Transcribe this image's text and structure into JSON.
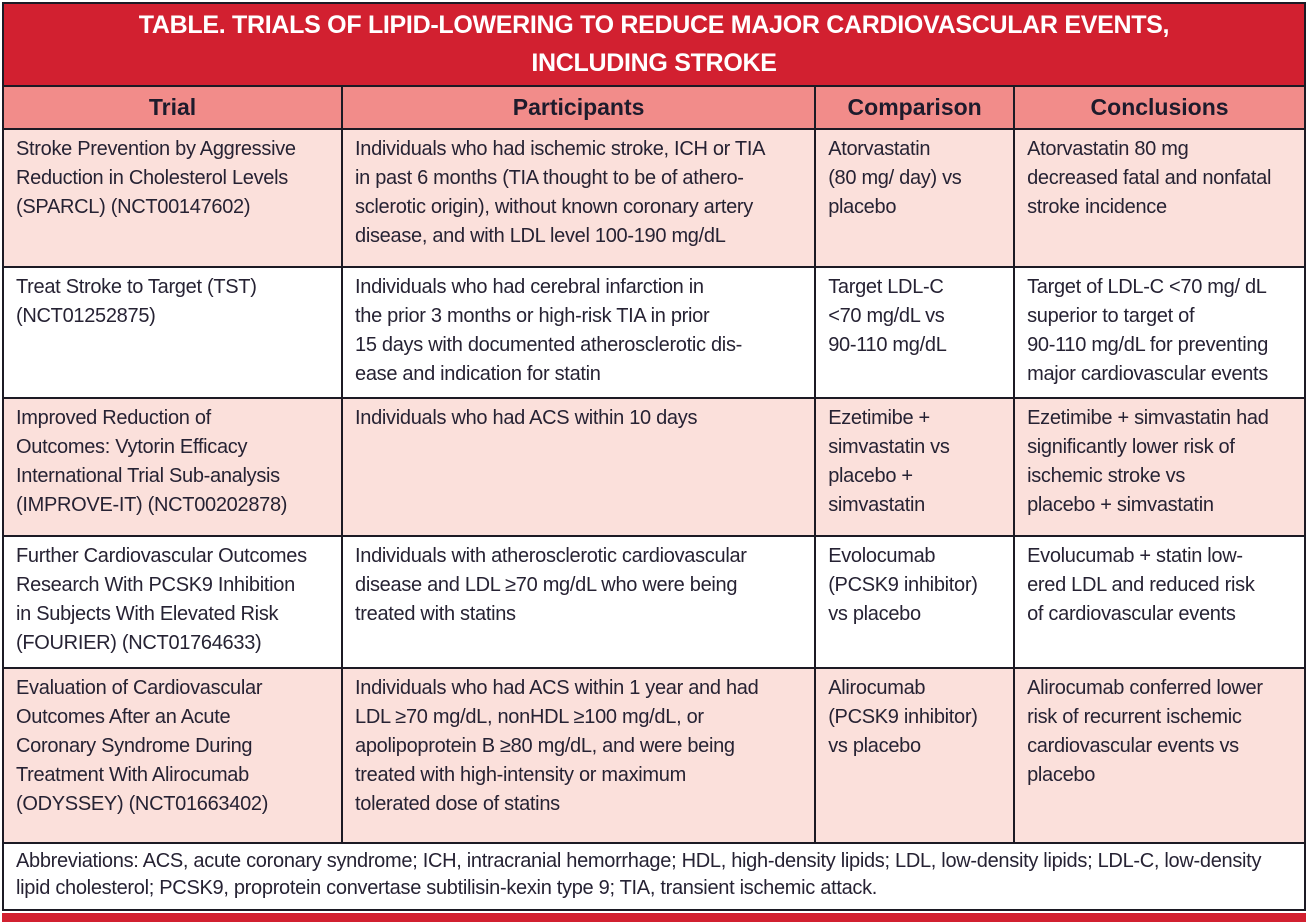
{
  "table": {
    "title": "TABLE. TRIALS OF LIPID-LOWERING TO REDUCE MAJOR CARDIOVASCULAR EVENTS,\nINCLUDING STROKE",
    "columns": {
      "trial": "Trial",
      "participants": "Participants",
      "comparison": "Comparison",
      "conclusions": "Conclusions"
    },
    "rows": [
      {
        "trial": "Stroke Prevention by Aggressive\nReduction in Cholesterol Levels\n(SPARCL) (NCT00147602)",
        "participants": "Individuals who had ischemic stroke, ICH or TIA\nin past 6 months (TIA thought to be of athero-\nsclerotic origin), without known coronary artery\ndisease, and with LDL level 100-190 mg/dL",
        "comparison": "Atorvastatin\n(80 mg/ day) vs\nplacebo",
        "conclusions": "Atorvastatin 80 mg\ndecreased fatal and nonfatal\nstroke incidence"
      },
      {
        "trial": "Treat Stroke to Target (TST)\n(NCT01252875)",
        "participants": "Individuals who had cerebral infarction in\nthe prior 3 months or high-risk TIA in prior\n15 days with documented atherosclerotic dis-\nease and indication for statin",
        "comparison": "Target LDL-C\n<70 mg/dL vs\n 90-110 mg/dL",
        "conclusions": "Target of LDL-C <70 mg/ dL\nsuperior to target of\n90-110 mg/dL for preventing\nmajor cardiovascular events"
      },
      {
        "trial": "Improved Reduction of\nOutcomes: Vytorin Efficacy\nInternational Trial Sub-analysis\n(IMPROVE-IT) (NCT00202878)",
        "participants": "Individuals who had ACS within 10 days",
        "comparison": "Ezetimibe +\nsimvastatin vs\nplacebo +\nsimvastatin",
        "conclusions": "Ezetimibe + simvastatin had\nsignificantly lower risk of\nischemic stroke vs\nplacebo + simvastatin"
      },
      {
        "trial": "Further Cardiovascular Outcomes\nResearch With PCSK9 Inhibition\nin Subjects With Elevated Risk\n(FOURIER) (NCT01764633)",
        "participants": "Individuals with atherosclerotic cardiovascular\ndisease and LDL ≥70 mg/dL who were being\ntreated with statins",
        "comparison": "Evolocumab\n(PCSK9 inhibitor)\nvs placebo",
        "conclusions": "Evolucumab + statin low-\nered LDL and reduced risk\nof cardiovascular events"
      },
      {
        "trial": "Evaluation of Cardiovascular\nOutcomes After an Acute\nCoronary Syndrome During\nTreatment With Alirocumab\n(ODYSSEY) (NCT01663402)",
        "participants": "Individuals who had ACS within 1 year and had\nLDL ≥70 mg/dL, nonHDL ≥100 mg/dL, or\napolipoprotein B ≥80 mg/dL, and were being\ntreated with high-intensity or maximum\ntolerated dose of statins",
        "comparison": "Alirocumab\n(PCSK9 inhibitor)\nvs placebo",
        "conclusions": "Alirocumab conferred lower\nrisk of recurrent ischemic\ncardiovascular events vs\nplacebo"
      }
    ],
    "footnote": "Abbreviations: ACS, acute coronary syndrome; ICH, intracranial hemorrhage; HDL, high-density lipids; LDL, low-density lipids; LDL-C, low-density lipid cholesterol; PCSK9, proprotein convertase subtilisin-kexin type 9; TIA, transient ischemic attack.",
    "colors": {
      "accent_red": "#d22030",
      "header_salmon": "#f28c8a",
      "row_pink": "#fbe0db",
      "border_black": "#1c1a24",
      "text_dark": "#262233",
      "title_text": "#ffffff"
    }
  }
}
